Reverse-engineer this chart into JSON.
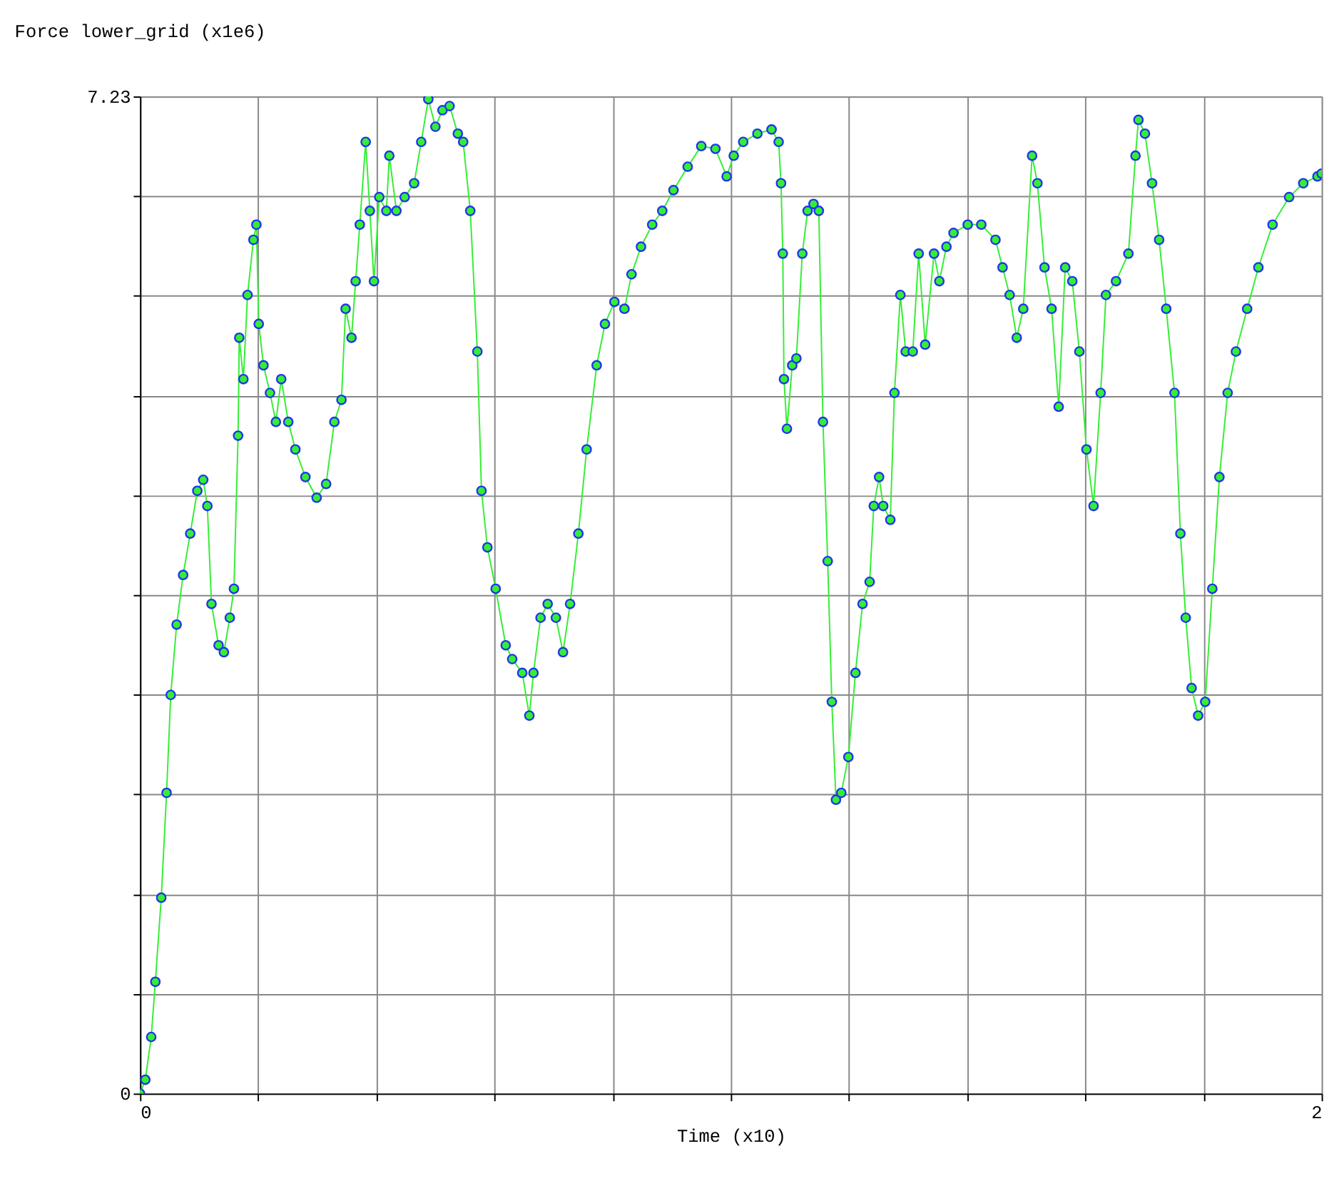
{
  "chart_data": {
    "type": "line",
    "xlabel": "Time (x10)",
    "ylabel": "Force lower_grid (x1e6)",
    "xlim": [
      0,
      2
    ],
    "ylim": [
      0,
      7.23
    ],
    "xticks": [
      0,
      {
        "value": 0.2,
        "label": null
      },
      {
        "value": 0.4,
        "label": null
      },
      {
        "value": 0.6,
        "label": null
      },
      {
        "value": 0.8,
        "label": null
      },
      {
        "value": 1.0,
        "label": null
      },
      {
        "value": 1.2,
        "label": null
      },
      {
        "value": 1.4,
        "label": null
      },
      {
        "value": 1.6,
        "label": null
      },
      {
        "value": 1.8,
        "label": null
      },
      2
    ],
    "yticks": [
      0,
      {
        "value": 0.723,
        "label": null
      },
      {
        "value": 1.446,
        "label": null
      },
      {
        "value": 2.169,
        "label": null
      },
      {
        "value": 2.892,
        "label": null
      },
      {
        "value": 3.615,
        "label": null
      },
      {
        "value": 4.338,
        "label": null
      },
      {
        "value": 5.061,
        "label": null
      },
      {
        "value": 5.784,
        "label": null
      },
      {
        "value": 6.507,
        "label": null
      },
      7.23
    ],
    "grid": true,
    "marker": "circle",
    "line_style": "solid",
    "series": [
      {
        "color": "#33ee33",
        "x": [
          0,
          0.009,
          0.019,
          0.026,
          0.036,
          0.045,
          0.052,
          0.062,
          0.073,
          0.085,
          0.097,
          0.107,
          0.114,
          0.121,
          0.133,
          0.142,
          0.152,
          0.159,
          0.166,
          0.168,
          0.175,
          0.182,
          0.192,
          0.197,
          0.201,
          0.209,
          0.22,
          0.23,
          0.239,
          0.251,
          0.263,
          0.28,
          0.299,
          0.315,
          0.329,
          0.341,
          0.348,
          0.358,
          0.365,
          0.372,
          0.382,
          0.389,
          0.396,
          0.405,
          0.417,
          0.422,
          0.434,
          0.448,
          0.464,
          0.476,
          0.488,
          0.5,
          0.512,
          0.524,
          0.538,
          0.547,
          0.559,
          0.571,
          0.578,
          0.588,
          0.602,
          0.619,
          0.63,
          0.647,
          0.659,
          0.666,
          0.678,
          0.69,
          0.704,
          0.716,
          0.728,
          0.742,
          0.756,
          0.773,
          0.787,
          0.803,
          0.82,
          0.832,
          0.848,
          0.867,
          0.884,
          0.903,
          0.927,
          0.95,
          0.974,
          0.993,
          1.005,
          1.021,
          1.045,
          1.069,
          1.081,
          1.085,
          1.088,
          1.09,
          1.095,
          1.104,
          1.111,
          1.121,
          1.13,
          1.14,
          1.149,
          1.156,
          1.164,
          1.171,
          1.178,
          1.187,
          1.199,
          1.211,
          1.223,
          1.235,
          1.242,
          1.251,
          1.258,
          1.27,
          1.277,
          1.287,
          1.296,
          1.308,
          1.318,
          1.329,
          1.344,
          1.353,
          1.365,
          1.377,
          1.401,
          1.424,
          1.448,
          1.46,
          1.472,
          1.484,
          1.495,
          1.51,
          1.519,
          1.531,
          1.543,
          1.555,
          1.566,
          1.578,
          1.59,
          1.602,
          1.614,
          1.626,
          1.635,
          1.652,
          1.673,
          1.685,
          1.69,
          1.701,
          1.713,
          1.725,
          1.737,
          1.751,
          1.761,
          1.77,
          1.78,
          1.791,
          1.803,
          1.815,
          1.827,
          1.841,
          1.855,
          1.874,
          1.893,
          1.917,
          1.945,
          1.969,
          1.993,
          2.0
        ],
        "values": [
          0,
          0.1,
          0.41,
          0.81,
          1.42,
          2.18,
          2.89,
          3.4,
          3.76,
          4.06,
          4.37,
          4.45,
          4.26,
          3.55,
          3.25,
          3.2,
          3.45,
          3.66,
          4.77,
          5.48,
          5.18,
          5.79,
          6.19,
          6.3,
          5.58,
          5.28,
          5.08,
          4.87,
          5.18,
          4.87,
          4.67,
          4.47,
          4.32,
          4.42,
          4.87,
          5.03,
          5.69,
          5.48,
          5.89,
          6.3,
          6.9,
          6.4,
          5.89,
          6.5,
          6.4,
          6.8,
          6.4,
          6.5,
          6.6,
          6.9,
          7.21,
          7.01,
          7.13,
          7.16,
          6.96,
          6.9,
          6.4,
          5.38,
          4.37,
          3.96,
          3.66,
          3.25,
          3.15,
          3.05,
          2.74,
          3.05,
          3.45,
          3.55,
          3.45,
          3.2,
          3.55,
          4.06,
          4.67,
          5.28,
          5.58,
          5.74,
          5.69,
          5.94,
          6.14,
          6.3,
          6.4,
          6.55,
          6.72,
          6.87,
          6.85,
          6.65,
          6.8,
          6.9,
          6.96,
          6.99,
          6.9,
          6.6,
          6.09,
          5.18,
          4.82,
          5.28,
          5.33,
          6.09,
          6.4,
          6.45,
          6.4,
          4.87,
          3.86,
          2.84,
          2.13,
          2.18,
          2.44,
          3.05,
          3.55,
          3.71,
          4.26,
          4.47,
          4.26,
          4.16,
          5.08,
          5.79,
          5.38,
          5.38,
          6.09,
          5.43,
          6.09,
          5.89,
          6.14,
          6.24,
          6.3,
          6.3,
          6.19,
          5.99,
          5.79,
          5.48,
          5.69,
          6.8,
          6.6,
          5.99,
          5.69,
          4.98,
          5.99,
          5.89,
          5.38,
          4.67,
          4.26,
          5.08,
          5.79,
          5.89,
          6.09,
          6.8,
          7.06,
          6.96,
          6.6,
          6.19,
          5.69,
          5.08,
          4.06,
          3.45,
          2.94,
          2.74,
          2.84,
          3.66,
          4.47,
          5.08,
          5.38,
          5.69,
          5.99,
          6.3,
          6.5,
          6.6,
          6.65,
          6.67
        ]
      }
    ]
  }
}
